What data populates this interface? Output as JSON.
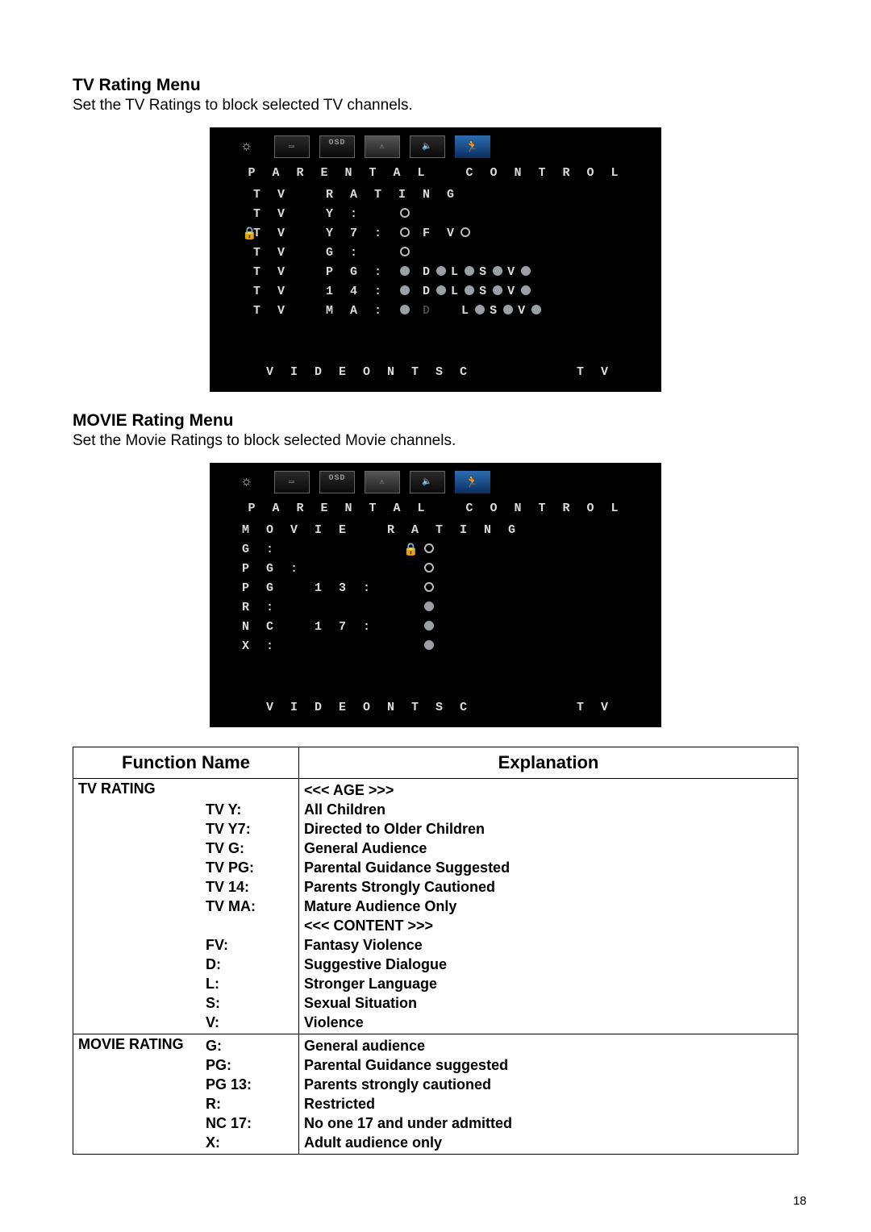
{
  "page_number": "18",
  "sections": {
    "tv": {
      "title": "TV Rating Menu",
      "subtitle": "Set the TV Ratings to block selected TV channels."
    },
    "movie": {
      "title": "MOVIE Rating Menu",
      "subtitle": "Set the Movie Ratings to block selected Movie channels."
    }
  },
  "osd": {
    "header": "P A R E N T A L   C O N T R O L",
    "footer_left": "V I D E O   N T S C",
    "footer_right": "T V",
    "icons": [
      "sun",
      "screen",
      "osd",
      "parental",
      "speaker",
      "runner"
    ],
    "icon_glyphs": {
      "sun": "☼",
      "screen": "▭",
      "osd": "OSD",
      "parental": "⚠",
      "speaker": "🔈",
      "runner": "🏃"
    }
  },
  "tv_osd": {
    "section_label": "T V   R A T I N G",
    "rows": [
      {
        "prefix": "",
        "label": "T V   Y :",
        "state": "open",
        "subs": []
      },
      {
        "prefix": "lock",
        "label": "T V   Y 7 :",
        "state": "open",
        "subs": [
          {
            "t": "F V",
            "s": "open"
          }
        ]
      },
      {
        "prefix": "",
        "label": "T V   G :",
        "state": "open",
        "subs": []
      },
      {
        "prefix": "",
        "label": "T V   P G :",
        "state": "filled",
        "subs": [
          {
            "t": "D",
            "s": "filled"
          },
          {
            "t": "L",
            "s": "filled"
          },
          {
            "t": "S",
            "s": "filled"
          },
          {
            "t": "V",
            "s": "filled"
          }
        ]
      },
      {
        "prefix": "",
        "label": "T V   1 4 :",
        "state": "filled",
        "subs": [
          {
            "t": "D",
            "s": "filled"
          },
          {
            "t": "L",
            "s": "filled"
          },
          {
            "t": "S",
            "s": "filled"
          },
          {
            "t": "V",
            "s": "filled"
          }
        ]
      },
      {
        "prefix": "",
        "label": "T V   M A :",
        "state": "filled",
        "subs": [
          {
            "t": "D",
            "s": "off"
          },
          {
            "t": "L",
            "s": "filled"
          },
          {
            "t": "S",
            "s": "filled"
          },
          {
            "t": "V",
            "s": "filled"
          }
        ]
      }
    ]
  },
  "movie_osd": {
    "section_label": "M O V I E   R A T I N G",
    "rows": [
      {
        "label": "G :",
        "lock": true,
        "state": "open"
      },
      {
        "label": "P G :",
        "lock": false,
        "state": "open"
      },
      {
        "label": "P G   1 3 :",
        "lock": false,
        "state": "open"
      },
      {
        "label": "R :",
        "lock": false,
        "state": "filled"
      },
      {
        "label": "N C   1 7 :",
        "lock": false,
        "state": "filled"
      },
      {
        "label": "X :",
        "lock": false,
        "state": "filled"
      }
    ]
  },
  "func_table": {
    "headers": {
      "fn": "Function Name",
      "exp": "Explanation"
    },
    "rows": [
      {
        "fn": "TV RATING",
        "codes": [
          "",
          "TV Y:",
          "TV Y7:",
          "TV G:",
          "TV PG:",
          "TV 14:",
          "TV MA:",
          "",
          "FV:",
          "D:",
          "L:",
          "S:",
          "V:"
        ],
        "expl": [
          "<<< AGE >>>",
          "All Children",
          "Directed to Older Children",
          "General Audience",
          "Parental Guidance Suggested",
          "Parents Strongly Cautioned",
          "Mature Audience Only",
          "<<< CONTENT >>>",
          "Fantasy Violence",
          "Suggestive Dialogue",
          "Stronger Language",
          "Sexual Situation",
          "Violence"
        ]
      },
      {
        "fn": "MOVIE RATING",
        "codes": [
          "G:",
          "PG:",
          "PG 13:",
          "R:",
          "NC 17:",
          "X:"
        ],
        "expl": [
          "General audience",
          "Parental Guidance suggested",
          "Parents strongly cautioned",
          "Restricted",
          "No one 17 and under admitted",
          "Adult audience only"
        ]
      }
    ]
  }
}
